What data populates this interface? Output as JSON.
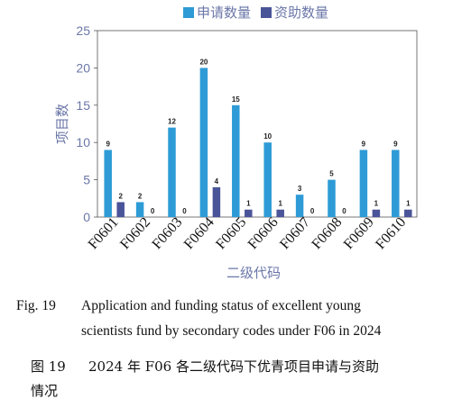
{
  "chart_data": {
    "type": "bar",
    "categories": [
      "F0601",
      "F0602",
      "F0603",
      "F0604",
      "F0605",
      "F0606",
      "F0607",
      "F0608",
      "F0609",
      "F0610"
    ],
    "series": [
      {
        "name": "申请数量",
        "color": "#2e9bd6",
        "values": [
          9,
          2,
          12,
          20,
          15,
          10,
          3,
          5,
          9,
          9
        ]
      },
      {
        "name": "资助数量",
        "color": "#4a5499",
        "values": [
          2,
          0,
          0,
          4,
          1,
          1,
          0,
          0,
          1,
          1
        ]
      }
    ],
    "xlabel": "二级代码",
    "ylabel": "项目数",
    "ylim": [
      0,
      25
    ],
    "yticks": [
      0,
      5,
      10,
      15,
      20,
      25
    ],
    "grid": false,
    "legend": "top-center",
    "axis_color": "#6b77a8"
  },
  "caption_en": {
    "label": "Fig. 19",
    "line1": "Application and funding status of excellent young",
    "line2": "scientists fund by secondary codes under F06 in 2024"
  },
  "caption_zh": {
    "label": "图 19",
    "line1": "2024 年 F06 各二级代码下优青项目申请与资助",
    "line2": "情况"
  }
}
